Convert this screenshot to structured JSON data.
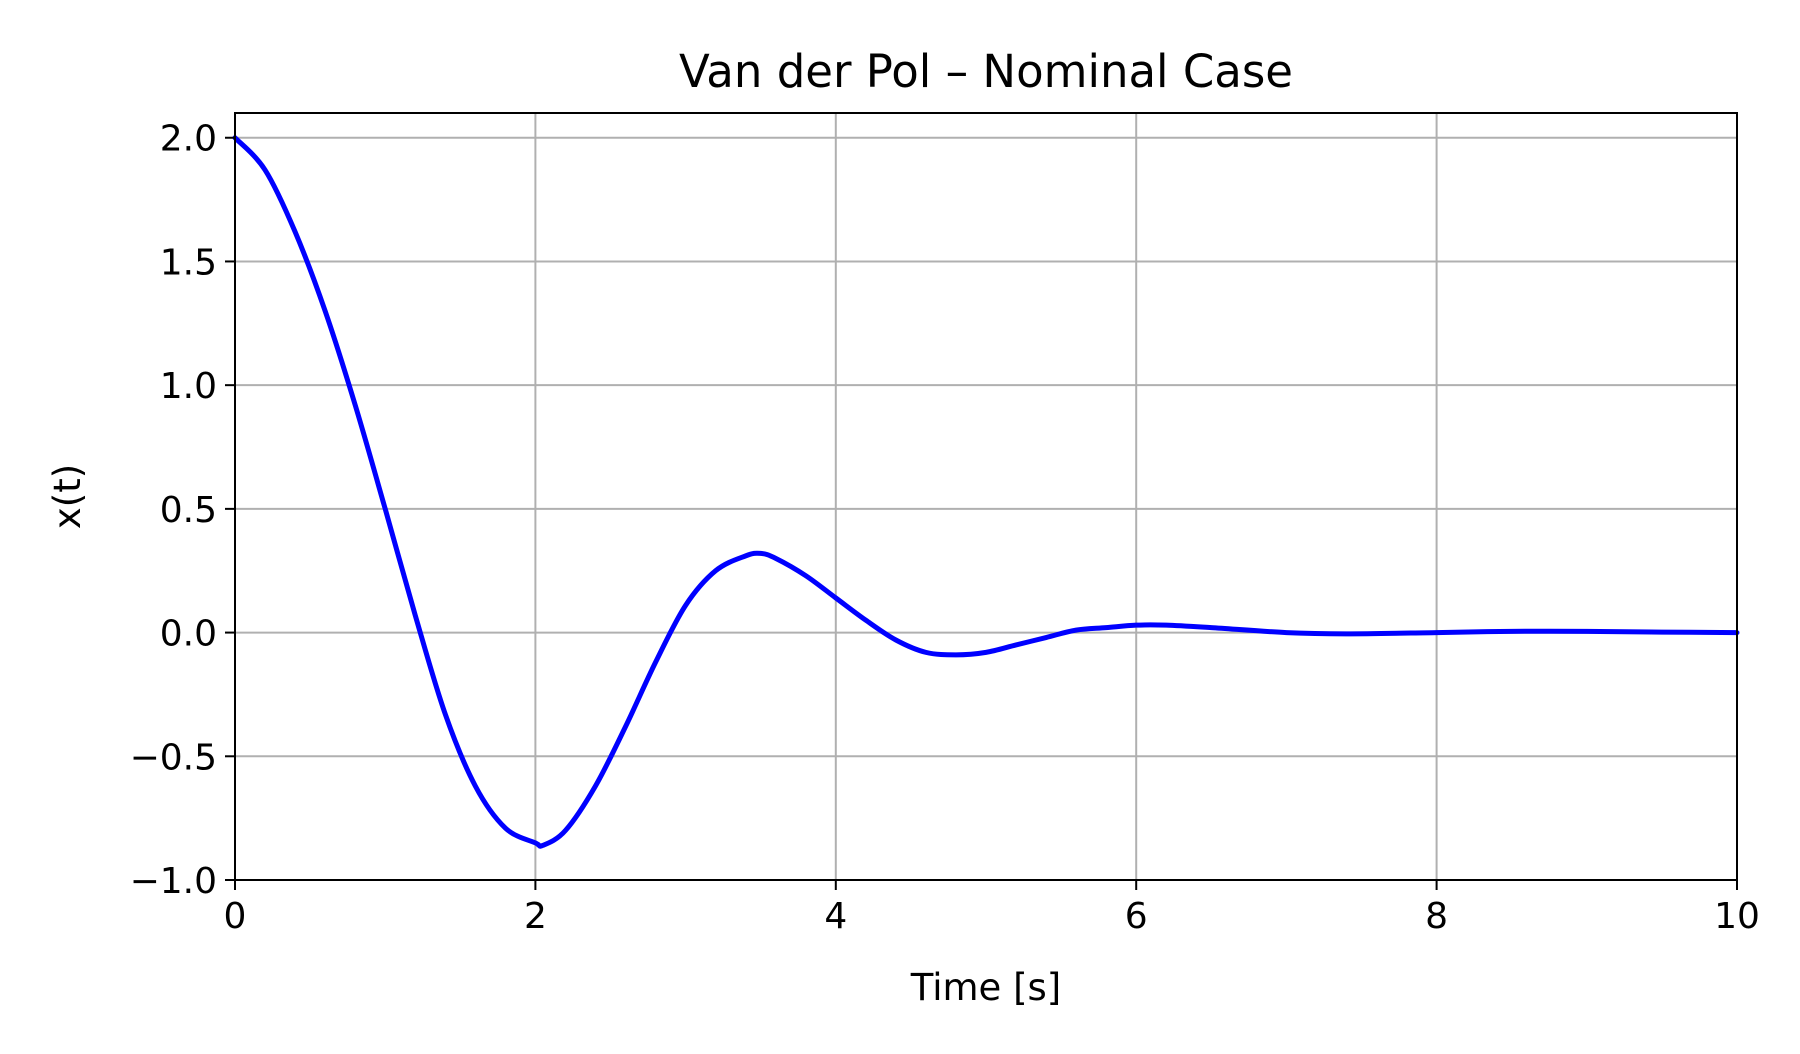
{
  "chart_data": {
    "type": "line",
    "title": "Van der Pol – Nominal Case",
    "xlabel": "Time [s]",
    "ylabel": "x(t)",
    "xlim": [
      0,
      10
    ],
    "ylim": [
      -1.0,
      2.1
    ],
    "xticks": [
      0,
      2,
      4,
      6,
      8,
      10
    ],
    "xtick_labels": [
      "0",
      "2",
      "4",
      "6",
      "8",
      "10"
    ],
    "yticks": [
      -1.0,
      -0.5,
      0.0,
      0.5,
      1.0,
      1.5,
      2.0
    ],
    "ytick_labels": [
      "−1.0",
      "−0.5",
      "0.0",
      "0.5",
      "1.0",
      "1.5",
      "2.0"
    ],
    "grid": true,
    "series": [
      {
        "color": "#0000ff",
        "x": [
          0.0,
          0.2,
          0.4,
          0.6,
          0.8,
          1.0,
          1.2,
          1.4,
          1.6,
          1.8,
          2.0,
          2.05,
          2.2,
          2.4,
          2.6,
          2.8,
          3.0,
          3.2,
          3.4,
          3.5,
          3.6,
          3.8,
          4.0,
          4.2,
          4.4,
          4.6,
          4.8,
          5.0,
          5.2,
          5.4,
          5.6,
          5.8,
          6.0,
          6.2,
          6.5,
          7.0,
          7.4,
          8.0,
          8.5,
          9.0,
          9.5,
          10.0
        ],
        "y": [
          2.0,
          1.87,
          1.62,
          1.3,
          0.92,
          0.5,
          0.07,
          -0.33,
          -0.62,
          -0.79,
          -0.85,
          -0.86,
          -0.8,
          -0.62,
          -0.38,
          -0.12,
          0.11,
          0.25,
          0.31,
          0.32,
          0.3,
          0.23,
          0.14,
          0.05,
          -0.03,
          -0.08,
          -0.09,
          -0.08,
          -0.05,
          -0.02,
          0.01,
          0.02,
          0.03,
          0.03,
          0.02,
          0.0,
          -0.005,
          0.0,
          0.005,
          0.005,
          0.002,
          0.0
        ]
      }
    ]
  }
}
